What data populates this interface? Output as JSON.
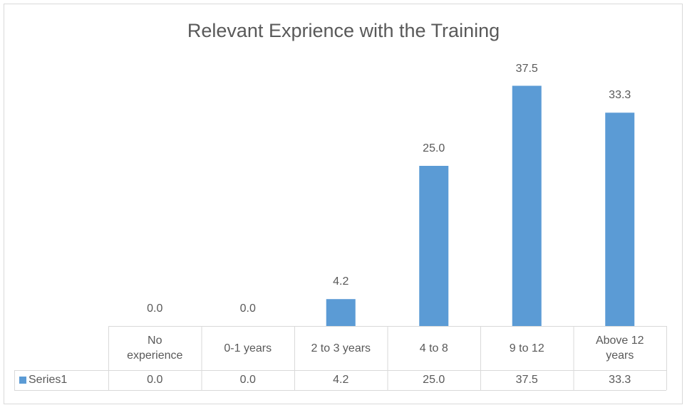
{
  "chart_data": {
    "type": "bar",
    "title": "Relevant Exprience with the Training",
    "categories": [
      "No experience",
      "0-1 years",
      "2 to 3 years",
      "4 to 8",
      "9 to 12",
      "Above 12 years"
    ],
    "series": [
      {
        "name": "Series1",
        "color": "#5b9bd5",
        "values": [
          0,
          0,
          4.2,
          25,
          37.5,
          33.3
        ],
        "value_labels": [
          "0.0",
          "0.0",
          "4.2",
          "25.0",
          "37.5",
          "33.3"
        ]
      }
    ]
  }
}
